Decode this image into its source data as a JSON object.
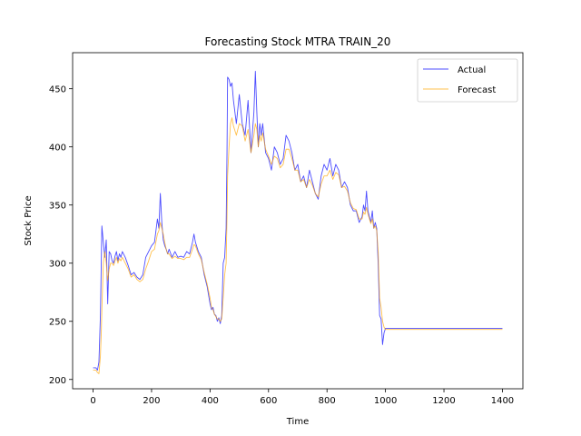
{
  "chart_data": {
    "type": "line",
    "title": "Forecasting Stock MTRA TRAIN_20",
    "xlabel": "Time",
    "ylabel": "Stock Price",
    "xlim": [
      -70,
      1470
    ],
    "ylim": [
      192,
      481
    ],
    "xticks": [
      0,
      200,
      400,
      600,
      800,
      1000,
      1200,
      1400
    ],
    "yticks": [
      200,
      250,
      300,
      350,
      400,
      450
    ],
    "grid": false,
    "legend_position": "top-right",
    "series": [
      {
        "name": "Actual",
        "color": "#0000ff",
        "x": [
          0,
          10,
          15,
          20,
          25,
          28,
          30,
          35,
          40,
          45,
          50,
          55,
          60,
          65,
          70,
          75,
          80,
          85,
          90,
          95,
          100,
          110,
          120,
          130,
          140,
          150,
          160,
          170,
          180,
          190,
          200,
          210,
          220,
          225,
          230,
          235,
          240,
          245,
          250,
          255,
          260,
          270,
          280,
          290,
          300,
          310,
          320,
          330,
          340,
          345,
          350,
          360,
          370,
          380,
          390,
          400,
          405,
          410,
          415,
          420,
          425,
          430,
          435,
          440,
          445,
          450,
          455,
          458,
          460,
          465,
          470,
          475,
          480,
          490,
          500,
          510,
          520,
          530,
          540,
          550,
          555,
          560,
          565,
          570,
          575,
          580,
          590,
          600,
          610,
          620,
          630,
          640,
          650,
          660,
          670,
          680,
          690,
          700,
          710,
          720,
          730,
          740,
          750,
          760,
          770,
          780,
          790,
          800,
          810,
          820,
          830,
          840,
          850,
          860,
          870,
          880,
          890,
          900,
          910,
          920,
          925,
          930,
          935,
          940,
          945,
          950,
          955,
          960,
          965,
          970,
          975,
          980,
          985,
          990,
          995,
          1000,
          1010,
          1100,
          1200,
          1300,
          1400
        ],
        "values": [
          210,
          210,
          208,
          215,
          255,
          300,
          332,
          318,
          305,
          320,
          265,
          310,
          308,
          302,
          300,
          306,
          310,
          302,
          308,
          305,
          310,
          305,
          298,
          290,
          292,
          288,
          286,
          290,
          305,
          310,
          315,
          318,
          338,
          330,
          360,
          335,
          320,
          315,
          312,
          308,
          312,
          305,
          310,
          305,
          306,
          305,
          310,
          308,
          318,
          325,
          318,
          310,
          305,
          290,
          280,
          265,
          260,
          262,
          256,
          255,
          250,
          253,
          248,
          255,
          300,
          305,
          330,
          395,
          460,
          458,
          452,
          455,
          440,
          420,
          445,
          420,
          410,
          440,
          395,
          430,
          465,
          430,
          400,
          420,
          410,
          420,
          395,
          390,
          380,
          400,
          395,
          385,
          390,
          410,
          405,
          395,
          380,
          385,
          370,
          375,
          365,
          380,
          370,
          360,
          355,
          375,
          385,
          380,
          390,
          375,
          385,
          380,
          365,
          370,
          365,
          350,
          345,
          345,
          335,
          340,
          350,
          345,
          362,
          345,
          340,
          335,
          345,
          330,
          335,
          330,
          300,
          255,
          252,
          230,
          240,
          244,
          244,
          244,
          244,
          244,
          244
        ]
      },
      {
        "name": "Forecast",
        "color": "#ffa500",
        "x": [
          0,
          10,
          15,
          20,
          25,
          28,
          30,
          35,
          40,
          45,
          50,
          55,
          60,
          65,
          70,
          75,
          80,
          85,
          90,
          95,
          100,
          110,
          120,
          130,
          140,
          150,
          160,
          170,
          180,
          190,
          200,
          210,
          220,
          225,
          230,
          235,
          240,
          245,
          250,
          255,
          260,
          270,
          280,
          290,
          300,
          310,
          320,
          330,
          340,
          345,
          350,
          360,
          370,
          380,
          390,
          400,
          405,
          410,
          415,
          420,
          425,
          430,
          435,
          440,
          445,
          450,
          455,
          458,
          460,
          465,
          470,
          475,
          480,
          490,
          500,
          510,
          520,
          530,
          540,
          550,
          555,
          560,
          565,
          570,
          575,
          580,
          590,
          600,
          610,
          620,
          630,
          640,
          650,
          660,
          670,
          680,
          690,
          700,
          710,
          720,
          730,
          740,
          750,
          760,
          770,
          780,
          790,
          800,
          810,
          820,
          830,
          840,
          850,
          860,
          870,
          880,
          890,
          900,
          910,
          920,
          925,
          930,
          935,
          940,
          945,
          950,
          955,
          960,
          965,
          970,
          975,
          980,
          985,
          990,
          995,
          1000,
          1010,
          1100,
          1200,
          1300,
          1400
        ],
        "values": [
          208,
          208,
          206,
          205,
          220,
          240,
          260,
          300,
          310,
          300,
          285,
          295,
          300,
          300,
          298,
          302,
          305,
          300,
          304,
          302,
          305,
          300,
          295,
          288,
          290,
          286,
          284,
          286,
          295,
          302,
          310,
          312,
          325,
          328,
          335,
          330,
          325,
          318,
          312,
          308,
          308,
          304,
          306,
          304,
          304,
          303,
          305,
          305,
          312,
          316,
          315,
          308,
          303,
          292,
          282,
          270,
          262,
          260,
          256,
          254,
          252,
          252,
          250,
          252,
          270,
          290,
          300,
          340,
          375,
          400,
          420,
          425,
          418,
          410,
          420,
          418,
          405,
          415,
          395,
          410,
          420,
          415,
          400,
          410,
          405,
          412,
          398,
          392,
          385,
          392,
          390,
          382,
          385,
          398,
          398,
          390,
          380,
          380,
          370,
          372,
          365,
          372,
          367,
          360,
          357,
          368,
          375,
          375,
          380,
          372,
          378,
          376,
          365,
          366,
          362,
          352,
          347,
          346,
          338,
          338,
          344,
          342,
          348,
          342,
          338,
          334,
          338,
          330,
          332,
          328,
          310,
          270,
          262,
          250,
          245,
          243,
          243,
          243,
          243,
          243,
          243
        ]
      }
    ]
  }
}
